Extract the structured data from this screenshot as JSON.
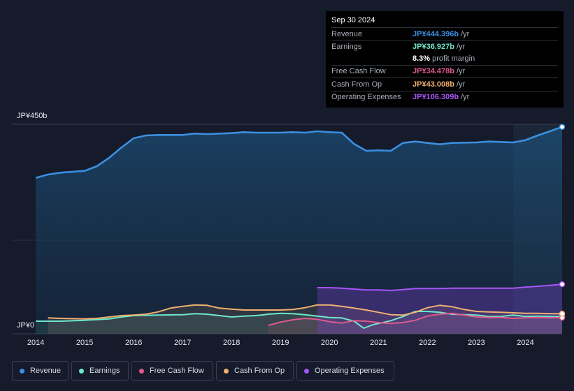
{
  "tooltip": {
    "date": "Sep 30 2024",
    "rows": [
      {
        "label": "Revenue",
        "value": "JP¥444.396b",
        "unit": "/yr",
        "color": "#3b8fe0"
      },
      {
        "label": "Earnings",
        "value": "JP¥36.927b",
        "unit": "/yr",
        "color": "#6ee7c9"
      },
      {
        "label": "Free Cash Flow",
        "value": "JP¥34.478b",
        "unit": "/yr",
        "color": "#e0598b"
      },
      {
        "label": "Cash From Op",
        "value": "JP¥43.008b",
        "unit": "/yr",
        "color": "#f0b070"
      },
      {
        "label": "Operating Expenses",
        "value": "JP¥106.309b",
        "unit": "/yr",
        "color": "#a855f7"
      }
    ],
    "margin_value": "8.3%",
    "margin_text": "profit margin"
  },
  "legend": [
    {
      "label": "Revenue",
      "color": "#3b8fe0"
    },
    {
      "label": "Earnings",
      "color": "#6ee7c9"
    },
    {
      "label": "Free Cash Flow",
      "color": "#e0598b"
    },
    {
      "label": "Cash From Op",
      "color": "#f0b070"
    },
    {
      "label": "Operating Expenses",
      "color": "#a855f7"
    }
  ],
  "chart_data": {
    "type": "area",
    "ylabels": {
      "top": "JP¥450b",
      "bottom": "JP¥0"
    },
    "ylim": [
      0,
      450
    ],
    "xlim": [
      2013.97,
      2024.75
    ],
    "xticks": [
      "2014",
      "2015",
      "2016",
      "2017",
      "2018",
      "2019",
      "2020",
      "2021",
      "2022",
      "2023",
      "2024"
    ],
    "series": [
      {
        "name": "Revenue",
        "color": "#3b8fe0",
        "points": [
          [
            2014.0,
            335
          ],
          [
            2014.25,
            342
          ],
          [
            2014.5,
            346
          ],
          [
            2015.0,
            350
          ],
          [
            2015.25,
            360
          ],
          [
            2015.5,
            378
          ],
          [
            2015.75,
            400
          ],
          [
            2016.0,
            420
          ],
          [
            2016.25,
            426
          ],
          [
            2016.5,
            427
          ],
          [
            2017.0,
            427
          ],
          [
            2017.25,
            430
          ],
          [
            2017.5,
            429
          ],
          [
            2018.0,
            431
          ],
          [
            2018.25,
            433
          ],
          [
            2018.5,
            432
          ],
          [
            2019.0,
            432
          ],
          [
            2019.25,
            433
          ],
          [
            2019.5,
            432
          ],
          [
            2019.75,
            435
          ],
          [
            2020.0,
            433
          ],
          [
            2020.25,
            432
          ],
          [
            2020.5,
            408
          ],
          [
            2020.75,
            393
          ],
          [
            2021.0,
            394
          ],
          [
            2021.25,
            393
          ],
          [
            2021.5,
            410
          ],
          [
            2021.75,
            413
          ],
          [
            2022.0,
            410
          ],
          [
            2022.25,
            407
          ],
          [
            2022.5,
            410
          ],
          [
            2023.0,
            411
          ],
          [
            2023.25,
            413
          ],
          [
            2023.5,
            412
          ],
          [
            2023.75,
            411
          ],
          [
            2024.0,
            416
          ],
          [
            2024.25,
            426
          ],
          [
            2024.5,
            435
          ],
          [
            2024.75,
            444.4
          ]
        ]
      },
      {
        "name": "Earnings",
        "color": "#6ee7c9",
        "points": [
          [
            2014.0,
            27
          ],
          [
            2014.25,
            27
          ],
          [
            2014.5,
            27
          ],
          [
            2015.0,
            29
          ],
          [
            2015.5,
            32
          ],
          [
            2015.75,
            36
          ],
          [
            2016.0,
            39
          ],
          [
            2016.5,
            40
          ],
          [
            2017.0,
            41
          ],
          [
            2017.25,
            43
          ],
          [
            2017.5,
            42
          ],
          [
            2017.75,
            39
          ],
          [
            2018.0,
            36
          ],
          [
            2018.25,
            38
          ],
          [
            2018.5,
            39
          ],
          [
            2018.75,
            42
          ],
          [
            2019.0,
            44
          ],
          [
            2019.25,
            43
          ],
          [
            2019.5,
            41
          ],
          [
            2019.75,
            38
          ],
          [
            2020.0,
            35
          ],
          [
            2020.25,
            34
          ],
          [
            2020.5,
            27
          ],
          [
            2020.7,
            12
          ],
          [
            2020.9,
            20
          ],
          [
            2021.0,
            22
          ],
          [
            2021.25,
            28
          ],
          [
            2021.5,
            37
          ],
          [
            2021.75,
            48
          ],
          [
            2022.0,
            48
          ],
          [
            2022.25,
            46
          ],
          [
            2022.5,
            42
          ],
          [
            2023.0,
            40
          ],
          [
            2023.25,
            37
          ],
          [
            2023.5,
            37
          ],
          [
            2023.75,
            40
          ],
          [
            2024.0,
            37
          ],
          [
            2024.25,
            38
          ],
          [
            2024.5,
            37
          ],
          [
            2024.75,
            36.9
          ]
        ]
      },
      {
        "name": "Free Cash Flow",
        "color": "#e0598b",
        "points": [
          [
            2018.75,
            18
          ],
          [
            2019.0,
            25
          ],
          [
            2019.25,
            30
          ],
          [
            2019.5,
            33
          ],
          [
            2019.75,
            31
          ],
          [
            2020.0,
            26
          ],
          [
            2020.25,
            23
          ],
          [
            2020.5,
            28
          ],
          [
            2020.75,
            27
          ],
          [
            2021.0,
            24
          ],
          [
            2021.25,
            22
          ],
          [
            2021.5,
            24
          ],
          [
            2021.75,
            29
          ],
          [
            2022.0,
            38
          ],
          [
            2022.25,
            42
          ],
          [
            2022.5,
            44
          ],
          [
            2022.75,
            40
          ],
          [
            2023.0,
            36
          ],
          [
            2023.25,
            35
          ],
          [
            2023.5,
            35
          ],
          [
            2023.75,
            33
          ],
          [
            2024.0,
            34
          ],
          [
            2024.25,
            35
          ],
          [
            2024.5,
            34
          ],
          [
            2024.75,
            34.5
          ]
        ]
      },
      {
        "name": "Cash From Op",
        "color": "#f0b070",
        "points": [
          [
            2014.25,
            34
          ],
          [
            2014.5,
            33
          ],
          [
            2015.0,
            32
          ],
          [
            2015.25,
            33
          ],
          [
            2015.5,
            36
          ],
          [
            2015.75,
            39
          ],
          [
            2016.0,
            40
          ],
          [
            2016.25,
            42
          ],
          [
            2016.5,
            47
          ],
          [
            2016.75,
            55
          ],
          [
            2017.0,
            59
          ],
          [
            2017.25,
            62
          ],
          [
            2017.5,
            61
          ],
          [
            2017.75,
            55
          ],
          [
            2018.0,
            53
          ],
          [
            2018.25,
            51
          ],
          [
            2018.5,
            51
          ],
          [
            2019.0,
            51
          ],
          [
            2019.25,
            52
          ],
          [
            2019.5,
            56
          ],
          [
            2019.75,
            62
          ],
          [
            2020.0,
            62
          ],
          [
            2020.25,
            59
          ],
          [
            2020.5,
            55
          ],
          [
            2020.75,
            51
          ],
          [
            2021.0,
            46
          ],
          [
            2021.25,
            41
          ],
          [
            2021.5,
            40
          ],
          [
            2021.75,
            46
          ],
          [
            2022.0,
            56
          ],
          [
            2022.25,
            61
          ],
          [
            2022.5,
            58
          ],
          [
            2022.75,
            52
          ],
          [
            2023.0,
            48
          ],
          [
            2023.25,
            47
          ],
          [
            2023.5,
            46
          ],
          [
            2023.75,
            45
          ],
          [
            2024.0,
            44
          ],
          [
            2024.25,
            44
          ],
          [
            2024.5,
            43
          ],
          [
            2024.75,
            43.0
          ]
        ]
      },
      {
        "name": "Operating Expenses",
        "color": "#a855f7",
        "points": [
          [
            2019.75,
            99
          ],
          [
            2020.0,
            99
          ],
          [
            2020.25,
            98
          ],
          [
            2020.5,
            96
          ],
          [
            2020.75,
            94
          ],
          [
            2021.0,
            94
          ],
          [
            2021.25,
            93
          ],
          [
            2021.5,
            95
          ],
          [
            2021.75,
            97
          ],
          [
            2022.0,
            97
          ],
          [
            2022.25,
            97
          ],
          [
            2022.5,
            98
          ],
          [
            2023.0,
            98
          ],
          [
            2023.25,
            98
          ],
          [
            2023.5,
            98
          ],
          [
            2023.75,
            98
          ],
          [
            2024.0,
            100
          ],
          [
            2024.25,
            102
          ],
          [
            2024.5,
            104
          ],
          [
            2024.75,
            106.3
          ]
        ]
      }
    ]
  }
}
